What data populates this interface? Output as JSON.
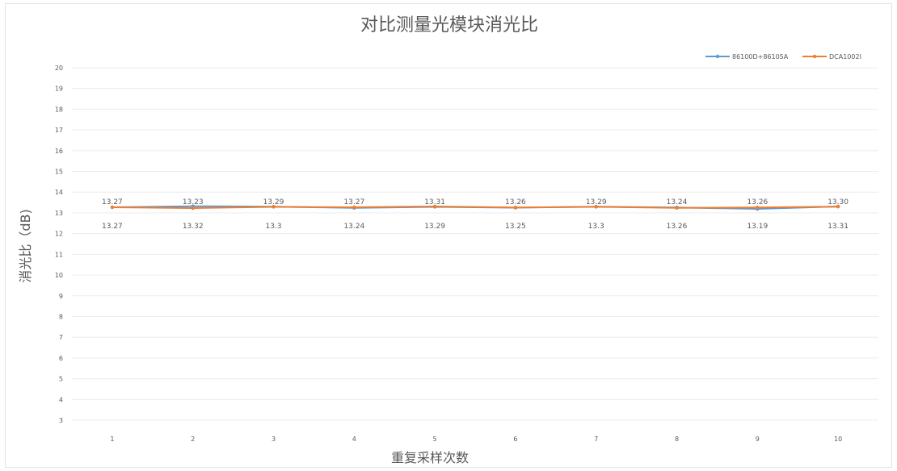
{
  "chart_data": {
    "type": "line",
    "title": "对比测量光模块消光比",
    "xlabel": "重复采样次数",
    "ylabel": "消光比（dB)",
    "categories": [
      "1",
      "2",
      "3",
      "4",
      "5",
      "6",
      "7",
      "8",
      "9",
      "10"
    ],
    "ylim": [
      3,
      20
    ],
    "yticks": [
      "3",
      "4",
      "5",
      "6",
      "7",
      "8",
      "9",
      "10",
      "11",
      "12",
      "13",
      "14",
      "15",
      "16",
      "17",
      "18",
      "19",
      "20"
    ],
    "grid": true,
    "legend_position": "top-right",
    "series": [
      {
        "name": "86100D+86105A",
        "color": "#5b9bd5",
        "values": [
          13.27,
          13.32,
          13.3,
          13.24,
          13.29,
          13.25,
          13.3,
          13.26,
          13.19,
          13.31
        ],
        "labels": [
          "13.27",
          "13.32",
          "13.3",
          "13.24",
          "13.29",
          "13.25",
          "13.3",
          "13.26",
          "13.19",
          "13.31"
        ]
      },
      {
        "name": "DCA1002I",
        "color": "#ed7d31",
        "values": [
          13.27,
          13.23,
          13.29,
          13.27,
          13.31,
          13.26,
          13.29,
          13.24,
          13.26,
          13.3
        ],
        "labels": [
          "13.27",
          "13.23",
          "13.29",
          "13.27",
          "13.31",
          "13.26",
          "13.29",
          "13.24",
          "13.26",
          "13.30"
        ]
      }
    ]
  }
}
